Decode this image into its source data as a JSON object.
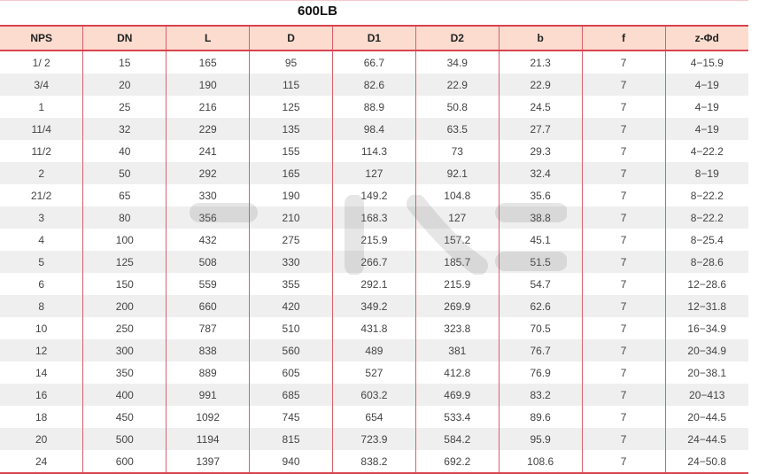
{
  "title": "600LB",
  "columns": [
    "NPS",
    "DN",
    "L",
    "D",
    "D1",
    "D2",
    "b",
    "f",
    "z-Φd"
  ],
  "rows": [
    [
      "1/ 2",
      "15",
      "165",
      "95",
      "66.7",
      "34.9",
      "21.3",
      "7",
      "4−15.9"
    ],
    [
      "3/4",
      "20",
      "190",
      "115",
      "82.6",
      "22.9",
      "22.9",
      "7",
      "4−19"
    ],
    [
      "1",
      "25",
      "216",
      "125",
      "88.9",
      "50.8",
      "24.5",
      "7",
      "4−19"
    ],
    [
      "11/4",
      "32",
      "229",
      "135",
      "98.4",
      "63.5",
      "27.7",
      "7",
      "4−19"
    ],
    [
      "11/2",
      "40",
      "241",
      "155",
      "114.3",
      "73",
      "29.3",
      "7",
      "4−22.2"
    ],
    [
      "2",
      "50",
      "292",
      "165",
      "127",
      "92.1",
      "32.4",
      "7",
      "8−19"
    ],
    [
      "21/2",
      "65",
      "330",
      "190",
      "149.2",
      "104.8",
      "35.6",
      "7",
      "8−22.2"
    ],
    [
      "3",
      "80",
      "356",
      "210",
      "168.3",
      "127",
      "38.8",
      "7",
      "8−22.2"
    ],
    [
      "4",
      "100",
      "432",
      "275",
      "215.9",
      "157.2",
      "45.1",
      "7",
      "8−25.4"
    ],
    [
      "5",
      "125",
      "508",
      "330",
      "266.7",
      "185.7",
      "51.5",
      "7",
      "8−28.6"
    ],
    [
      "6",
      "150",
      "559",
      "355",
      "292.1",
      "215.9",
      "54.7",
      "7",
      "12−28.6"
    ],
    [
      "8",
      "200",
      "660",
      "420",
      "349.2",
      "269.9",
      "62.6",
      "7",
      "12−31.8"
    ],
    [
      "10",
      "250",
      "787",
      "510",
      "431.8",
      "323.8",
      "70.5",
      "7",
      "16−34.9"
    ],
    [
      "12",
      "300",
      "838",
      "560",
      "489",
      "381",
      "76.7",
      "7",
      "20−34.9"
    ],
    [
      "14",
      "350",
      "889",
      "605",
      "527",
      "412.8",
      "76.9",
      "7",
      "20−38.1"
    ],
    [
      "16",
      "400",
      "991",
      "685",
      "603.2",
      "469.9",
      "83.2",
      "7",
      "20−413"
    ],
    [
      "18",
      "450",
      "1092",
      "745",
      "654",
      "533.4",
      "89.6",
      "7",
      "20−44.5"
    ],
    [
      "20",
      "500",
      "1194",
      "815",
      "723.9",
      "584.2",
      "95.9",
      "7",
      "24−44.5"
    ],
    [
      "24",
      "600",
      "1397",
      "940",
      "838.2",
      "692.2",
      "108.6",
      "7",
      "24−50.8"
    ]
  ],
  "colors": {
    "accent": "#d8434f",
    "header_bg": "#fbdccf",
    "stripe": "#efefef"
  }
}
